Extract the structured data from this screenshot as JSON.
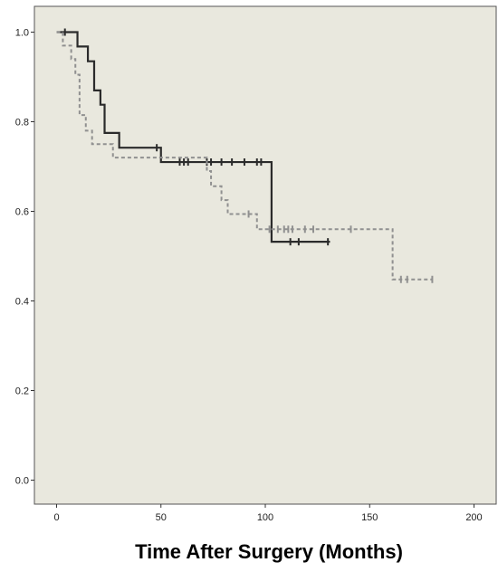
{
  "chart_data": {
    "type": "line",
    "subtype": "kaplan-meier-survival",
    "title": "",
    "xlabel": "Time After Surgery (Months)",
    "ylabel": "",
    "xlim": [
      -10,
      210
    ],
    "ylim": [
      -0.06,
      1.06
    ],
    "xticks": [
      0,
      50,
      100,
      150,
      200
    ],
    "yticks": [
      0.0,
      0.2,
      0.4,
      0.6,
      0.8,
      1.0
    ],
    "xtick_labels": [
      "0",
      "50",
      "100",
      "150",
      "200"
    ],
    "ytick_labels": [
      "0.0",
      "0.2",
      "0.4",
      "0.6",
      "0.8",
      "1.0"
    ],
    "grid": false,
    "legend": "none",
    "background_color": "#e9e8de",
    "series": [
      {
        "line_style": "solid",
        "color": "#2b2b2b",
        "steps": [
          [
            0,
            1.0
          ],
          [
            10,
            0.968
          ],
          [
            15,
            0.935
          ],
          [
            18,
            0.87
          ],
          [
            21,
            0.838
          ],
          [
            23,
            0.775
          ],
          [
            30,
            0.742
          ],
          [
            50,
            0.71
          ],
          [
            103,
            0.532
          ],
          [
            131,
            0.532
          ]
        ],
        "censored": [
          [
            4,
            1.0
          ],
          [
            48,
            0.742
          ],
          [
            59,
            0.71
          ],
          [
            61,
            0.71
          ],
          [
            63,
            0.71
          ],
          [
            72,
            0.71
          ],
          [
            74,
            0.71
          ],
          [
            79,
            0.71
          ],
          [
            84,
            0.71
          ],
          [
            90,
            0.71
          ],
          [
            96,
            0.71
          ],
          [
            98,
            0.71
          ],
          [
            112,
            0.532
          ],
          [
            116,
            0.532
          ],
          [
            130,
            0.532
          ]
        ]
      },
      {
        "line_style": "dashed",
        "color": "#909090",
        "steps": [
          [
            0,
            1.0
          ],
          [
            3,
            0.97
          ],
          [
            7,
            0.94
          ],
          [
            9,
            0.905
          ],
          [
            11,
            0.815
          ],
          [
            14,
            0.78
          ],
          [
            17,
            0.75
          ],
          [
            27,
            0.72
          ],
          [
            72,
            0.69
          ],
          [
            74,
            0.656
          ],
          [
            79,
            0.625
          ],
          [
            82,
            0.594
          ],
          [
            96,
            0.56
          ],
          [
            161,
            0.448
          ],
          [
            180,
            0.448
          ]
        ],
        "censored": [
          [
            92,
            0.594
          ],
          [
            102,
            0.56
          ],
          [
            106,
            0.56
          ],
          [
            109,
            0.56
          ],
          [
            111,
            0.56
          ],
          [
            113,
            0.56
          ],
          [
            119,
            0.56
          ],
          [
            123,
            0.56
          ],
          [
            141,
            0.56
          ],
          [
            165,
            0.448
          ],
          [
            168,
            0.448
          ],
          [
            180,
            0.448
          ]
        ]
      }
    ]
  }
}
